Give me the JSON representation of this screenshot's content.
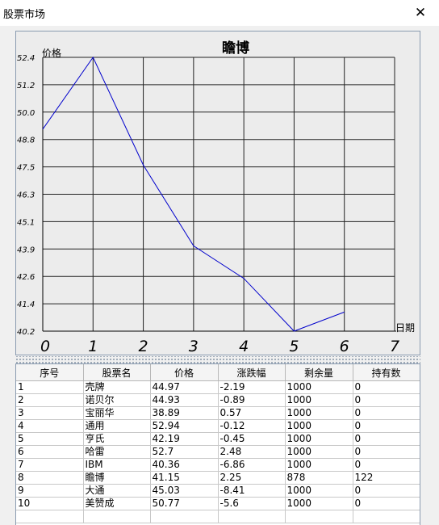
{
  "window": {
    "title": "股票市场"
  },
  "chart_data": {
    "type": "line",
    "title": "瞻博",
    "ylabel": "价格",
    "xlabel": "日期",
    "x_ticks": [
      "0",
      "1",
      "2",
      "3",
      "4",
      "5",
      "6",
      "7"
    ],
    "y_ticks": [
      "52.4",
      "51.2",
      "50.0",
      "48.8",
      "47.5",
      "46.3",
      "45.1",
      "43.9",
      "42.6",
      "41.4",
      "40.2"
    ],
    "x": [
      0,
      1,
      2,
      3,
      4,
      5,
      6
    ],
    "values": [
      49.2,
      52.4,
      47.6,
      44.0,
      42.55,
      40.2,
      41.05
    ],
    "xlim": [
      0,
      7
    ],
    "ylim": [
      40.2,
      52.4
    ],
    "grid": true,
    "line_color": "#0000cc"
  },
  "table": {
    "columns": [
      "序号",
      "股票名",
      "价格",
      "涨跌幅",
      "剩余量",
      "持有数"
    ],
    "rows": [
      [
        "1",
        "壳牌",
        "44.97",
        "-2.19",
        "1000",
        "0"
      ],
      [
        "2",
        "诺贝尔",
        "44.93",
        "-0.89",
        "1000",
        "0"
      ],
      [
        "3",
        "宝丽华",
        "38.89",
        "0.57",
        "1000",
        "0"
      ],
      [
        "4",
        "通用",
        "52.94",
        "-0.12",
        "1000",
        "0"
      ],
      [
        "5",
        "亨氏",
        "42.19",
        "-0.45",
        "1000",
        "0"
      ],
      [
        "6",
        "哈雷",
        "52.7",
        "2.48",
        "1000",
        "0"
      ],
      [
        "7",
        "IBM",
        "40.36",
        "-6.86",
        "1000",
        "0"
      ],
      [
        "8",
        "瞻博",
        "41.15",
        "2.25",
        "878",
        "122"
      ],
      [
        "9",
        "大通",
        "45.03",
        "-8.41",
        "1000",
        "0"
      ],
      [
        "10",
        "美赞成",
        "50.77",
        "-5.6",
        "1000",
        "0"
      ]
    ]
  }
}
